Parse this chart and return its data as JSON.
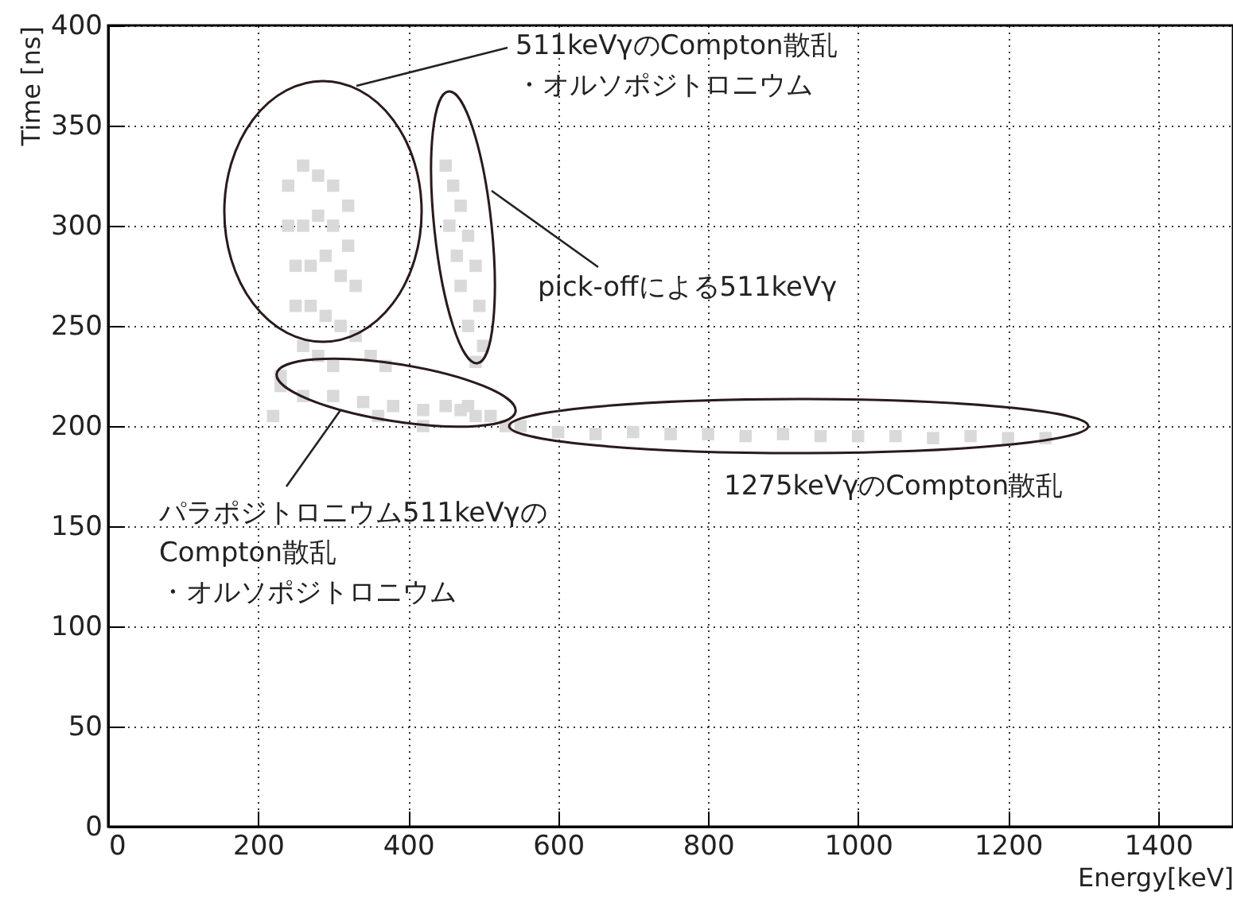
{
  "chart_data": {
    "type": "scatter",
    "xlabel": "Energy[keV]",
    "ylabel": "Time [ns]",
    "xlim": [
      0,
      1500
    ],
    "ylim": [
      0,
      400
    ],
    "xticks": [
      0,
      200,
      400,
      600,
      800,
      1000,
      1200,
      1400
    ],
    "yticks": [
      0,
      50,
      100,
      150,
      200,
      250,
      300,
      350,
      400
    ],
    "grid": true,
    "marker": "square",
    "series": [
      {
        "color": "#d9d9d9",
        "x": [
          240,
          260,
          280,
          300,
          320,
          240,
          260,
          280,
          300,
          320,
          250,
          270,
          290,
          310,
          330,
          250,
          270,
          290,
          310,
          330,
          260,
          280,
          300,
          350,
          370,
          230,
          220,
          450,
          460,
          470,
          455,
          480,
          465,
          490,
          470,
          495,
          480,
          500,
          490,
          230,
          260,
          300,
          340,
          380,
          420,
          450,
          470,
          480,
          490,
          510,
          530,
          550,
          420,
          360,
          600,
          650,
          700,
          750,
          800,
          850,
          900,
          950,
          1000,
          1050,
          1100,
          1150,
          1200,
          1250
        ],
        "values": [
          320,
          330,
          325,
          320,
          310,
          300,
          300,
          305,
          300,
          290,
          280,
          280,
          285,
          275,
          270,
          260,
          260,
          255,
          250,
          245,
          240,
          235,
          230,
          235,
          230,
          225,
          205,
          330,
          320,
          310,
          300,
          295,
          285,
          280,
          270,
          260,
          250,
          240,
          232,
          220,
          215,
          215,
          212,
          210,
          208,
          210,
          208,
          210,
          205,
          205,
          200,
          200,
          200,
          205,
          197,
          196,
          197,
          196,
          196,
          195,
          196,
          195,
          195,
          195,
          194,
          195,
          194,
          194
        ]
      }
    ],
    "annotations": [
      "511keVγのCompton散乱・オルソポジトロニウム",
      "pick-offによる511keVγ",
      "パラポジトロニウム511keVγのCompton散乱・オルソポジトロニウム",
      "1275keVγのCompton散乱"
    ]
  }
}
